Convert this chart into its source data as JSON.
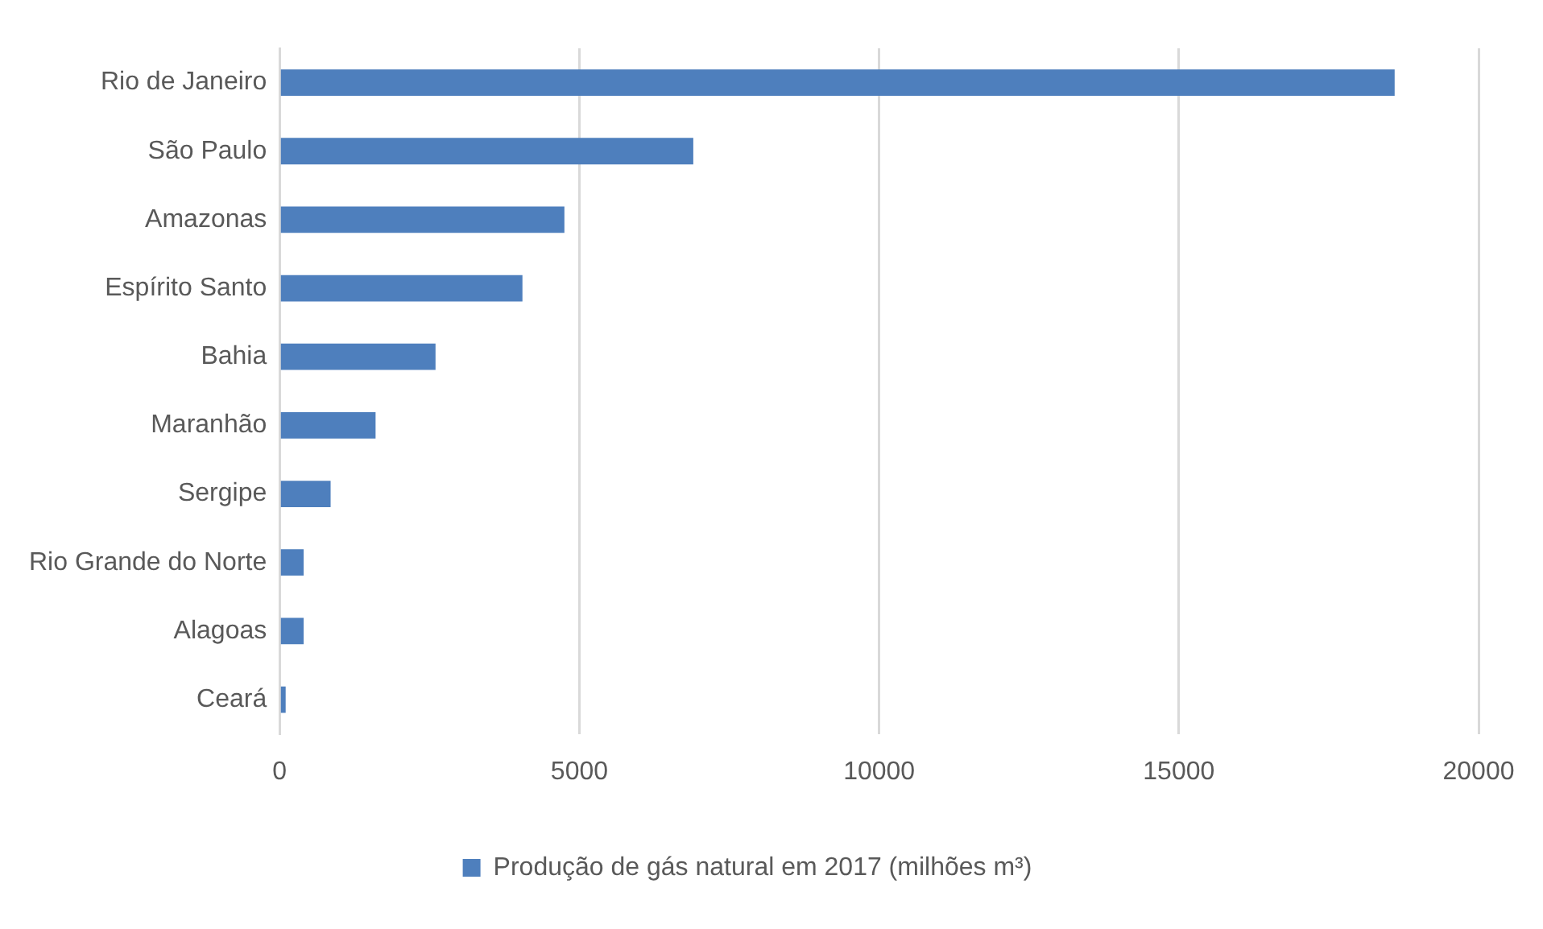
{
  "chart_data": {
    "type": "bar",
    "orientation": "horizontal",
    "categories": [
      "Rio de Janeiro",
      "São Paulo",
      "Amazonas",
      "Espírito Santo",
      "Bahia",
      "Maranhão",
      "Sergipe",
      "Rio Grande do Norte",
      "Alagoas",
      "Ceará"
    ],
    "series": [
      {
        "name": "Produção de gás natural em 2017 (milhões m³)",
        "color": "#4e7fbd",
        "values": [
          18600,
          6900,
          4750,
          4050,
          2600,
          1600,
          850,
          400,
          400,
          100
        ]
      }
    ],
    "xlim": [
      0,
      20000
    ],
    "xticks": [
      0,
      5000,
      10000,
      15000,
      20000
    ],
    "grid": "x",
    "legend": "bottom"
  }
}
